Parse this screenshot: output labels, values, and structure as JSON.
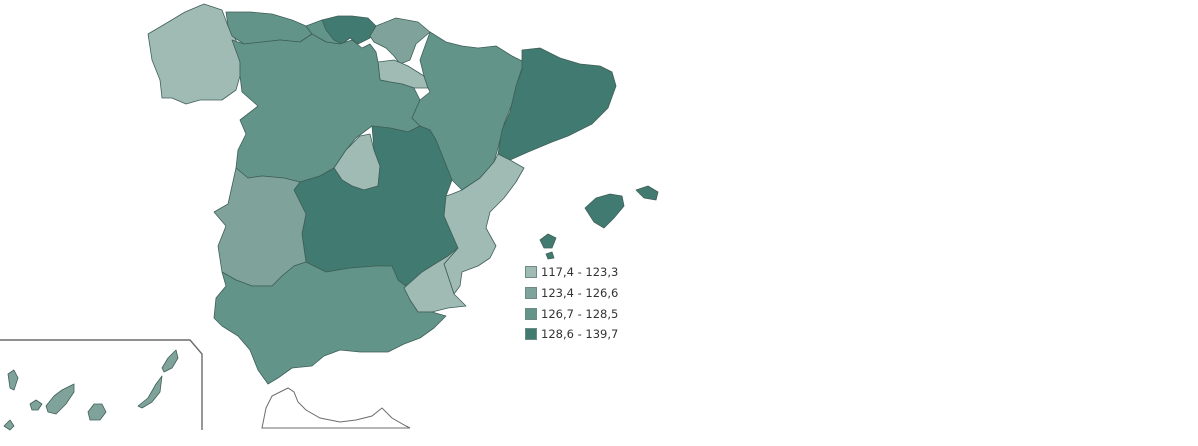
{
  "colors": {
    "class1": "#a0bab4",
    "class2": "#7fa39a",
    "class3": "#62948a",
    "class4": "#417a70"
  },
  "legend": {
    "items": [
      {
        "label": "117,4 - 123,3",
        "color": "#a0bab4"
      },
      {
        "label": "123,4 - 126,6",
        "color": "#7fa39a"
      },
      {
        "label": "126,7 - 128,5",
        "color": "#62948a"
      },
      {
        "label": "128,6 - 139,7",
        "color": "#417a70"
      }
    ]
  },
  "regions": {
    "galicia": 1,
    "asturias": 3,
    "cantabria": 3,
    "pais_vasco": 4,
    "navarra": 2,
    "la_rioja": 1,
    "aragon": 3,
    "cataluna": 4,
    "castilla_y_leon": 3,
    "madrid": 1,
    "castilla_la_mancha": 4,
    "extremadura": 2,
    "comunidad_valenciana": 1,
    "murcia": 1,
    "andalucia": 3,
    "illes_balears": 4,
    "canarias": 2,
    "ceuta_melilla": 0
  }
}
